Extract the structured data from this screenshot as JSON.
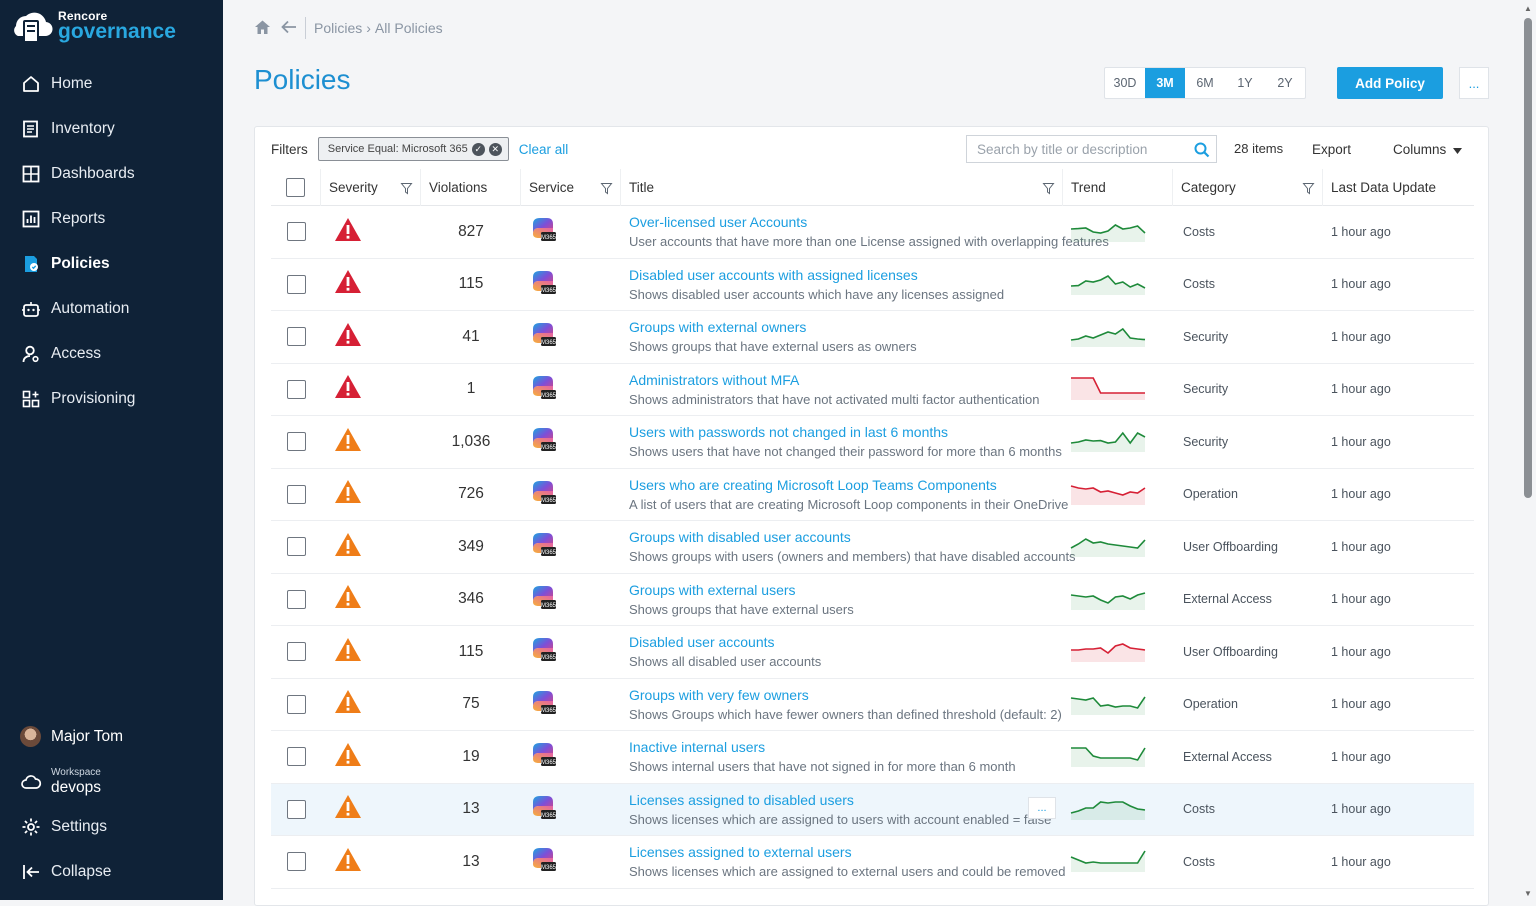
{
  "brand": {
    "top": "Rencore",
    "bottom": "governance"
  },
  "nav": [
    {
      "label": "Home",
      "icon": "home-icon"
    },
    {
      "label": "Inventory",
      "icon": "inventory-icon"
    },
    {
      "label": "Dashboards",
      "icon": "dashboards-icon"
    },
    {
      "label": "Reports",
      "icon": "reports-icon"
    },
    {
      "label": "Policies",
      "icon": "policies-icon",
      "active": true
    },
    {
      "label": "Automation",
      "icon": "automation-icon"
    },
    {
      "label": "Access",
      "icon": "access-icon"
    },
    {
      "label": "Provisioning",
      "icon": "provisioning-icon"
    }
  ],
  "user": {
    "name": "Major Tom"
  },
  "workspace": {
    "label": "Workspace",
    "name": "devops"
  },
  "bottom": {
    "settings": "Settings",
    "collapse": "Collapse"
  },
  "breadcrumb": {
    "parent": "Policies",
    "current": "All Policies"
  },
  "page_title": "Policies",
  "ranges": [
    "30D",
    "3M",
    "6M",
    "1Y",
    "2Y"
  ],
  "active_range": "3M",
  "add_policy": "Add Policy",
  "more": "...",
  "filters": {
    "label": "Filters",
    "chip": "Service Equal: Microsoft 365",
    "clear": "Clear all"
  },
  "search": {
    "placeholder": "Search by title or description"
  },
  "items_count": "28 items",
  "export": "Export",
  "columns": "Columns",
  "headers": {
    "severity": "Severity",
    "violations": "Violations",
    "service": "Service",
    "title": "Title",
    "trend": "Trend",
    "category": "Category",
    "last_update": "Last Data Update"
  },
  "colors": {
    "accent": "#1b9ee0",
    "sidebar": "#0f2237",
    "critical": "#d62035",
    "warning": "#ef7d18",
    "trend_green": "#1e8a3a",
    "trend_red": "#d62035"
  },
  "rows": [
    {
      "severity": "critical",
      "violations": "827",
      "title": "Over-licensed user Accounts",
      "desc": "User accounts that have more than one License assigned with overlapping features",
      "category": "Costs",
      "updated": "1 hour ago",
      "trend": [
        0.5,
        0.52,
        0.55,
        0.35,
        0.3,
        0.4,
        0.7,
        0.5,
        0.55,
        0.65,
        0.3
      ],
      "trend_color": "green"
    },
    {
      "severity": "critical",
      "violations": "115",
      "title": "Disabled user accounts with assigned licenses",
      "desc": "Shows disabled user accounts which have any licenses assigned",
      "category": "Costs",
      "updated": "1 hour ago",
      "trend": [
        0.3,
        0.32,
        0.55,
        0.5,
        0.6,
        0.8,
        0.4,
        0.5,
        0.25,
        0.4,
        0.2
      ],
      "trend_color": "green"
    },
    {
      "severity": "critical",
      "violations": "41",
      "title": "Groups with external owners",
      "desc": "Shows groups that have external users as owners",
      "category": "Security",
      "updated": "1 hour ago",
      "trend": [
        0.2,
        0.25,
        0.4,
        0.3,
        0.45,
        0.6,
        0.5,
        0.75,
        0.3,
        0.25,
        0.22
      ],
      "trend_color": "green"
    },
    {
      "severity": "critical",
      "violations": "1",
      "title": "Administrators without MFA",
      "desc": "Shows administrators that have not activated multi factor authentication",
      "category": "Security",
      "updated": "1 hour ago",
      "trend": [
        0.95,
        0.95,
        0.95,
        0.95,
        0.2,
        0.2,
        0.2,
        0.2,
        0.2,
        0.2,
        0.2
      ],
      "trend_color": "red"
    },
    {
      "severity": "warning",
      "violations": "1,036",
      "title": "Users with passwords not changed in last 6 months",
      "desc": "Shows users that have not changed their password for more than 6 months",
      "category": "Security",
      "updated": "1 hour ago",
      "trend": [
        0.3,
        0.35,
        0.45,
        0.4,
        0.42,
        0.3,
        0.35,
        0.8,
        0.3,
        0.8,
        0.6
      ],
      "trend_color": "green"
    },
    {
      "severity": "warning",
      "violations": "726",
      "title": "Users who are creating Microsoft Loop Teams Components",
      "desc": "A list of users that are creating Microsoft Loop components in their OneDrive",
      "category": "Operation",
      "updated": "1 hour ago",
      "trend": [
        0.8,
        0.7,
        0.65,
        0.7,
        0.5,
        0.55,
        0.45,
        0.35,
        0.5,
        0.45,
        0.7
      ],
      "trend_color": "red"
    },
    {
      "severity": "warning",
      "violations": "349",
      "title": "Groups with disabled user accounts",
      "desc": "Shows groups with users (owners and members) that have disabled accounts",
      "category": "User Offboarding",
      "updated": "1 hour ago",
      "trend": [
        0.3,
        0.5,
        0.75,
        0.55,
        0.6,
        0.5,
        0.45,
        0.4,
        0.35,
        0.3,
        0.7
      ],
      "trend_color": "green"
    },
    {
      "severity": "warning",
      "violations": "346",
      "title": "Groups with external users",
      "desc": "Shows groups that have external users",
      "category": "External Access",
      "updated": "1 hour ago",
      "trend": [
        0.6,
        0.55,
        0.5,
        0.55,
        0.35,
        0.2,
        0.5,
        0.55,
        0.4,
        0.6,
        0.7
      ],
      "trend_color": "green"
    },
    {
      "severity": "warning",
      "violations": "115",
      "title": "Disabled user accounts",
      "desc": "Shows all disabled user accounts",
      "category": "User Offboarding",
      "updated": "1 hour ago",
      "trend": [
        0.45,
        0.45,
        0.5,
        0.5,
        0.55,
        0.3,
        0.65,
        0.75,
        0.55,
        0.5,
        0.45
      ],
      "trend_color": "red"
    },
    {
      "severity": "warning",
      "violations": "75",
      "title": "Groups with very few owners",
      "desc": "Shows Groups which have fewer owners than defined threshold (default: 2)",
      "category": "Operation",
      "updated": "1 hour ago",
      "trend": [
        0.7,
        0.65,
        0.6,
        0.7,
        0.3,
        0.35,
        0.25,
        0.3,
        0.3,
        0.2,
        0.75
      ],
      "trend_color": "green"
    },
    {
      "severity": "warning",
      "violations": "19",
      "title": "Inactive internal users",
      "desc": "Shows internal users that have not signed in for more than 6 month",
      "category": "External Access",
      "updated": "1 hour ago",
      "trend": [
        0.8,
        0.8,
        0.8,
        0.4,
        0.3,
        0.3,
        0.3,
        0.3,
        0.3,
        0.2,
        0.8
      ],
      "trend_color": "green"
    },
    {
      "severity": "warning",
      "violations": "13",
      "title": "Licenses assigned to disabled users",
      "desc": "Shows licenses which are assigned to users with account enabled = false",
      "category": "Costs",
      "updated": "1 hour ago",
      "trend": [
        0.2,
        0.3,
        0.45,
        0.45,
        0.75,
        0.7,
        0.75,
        0.75,
        0.55,
        0.4,
        0.35
      ],
      "trend_color": "green",
      "hover": true
    },
    {
      "severity": "warning",
      "violations": "13",
      "title": "Licenses assigned to external users",
      "desc": "Shows licenses which are assigned to external users and could be removed",
      "category": "Costs",
      "updated": "1 hour ago",
      "trend": [
        0.6,
        0.45,
        0.3,
        0.35,
        0.3,
        0.3,
        0.3,
        0.3,
        0.3,
        0.3,
        0.9
      ],
      "trend_color": "green"
    }
  ]
}
